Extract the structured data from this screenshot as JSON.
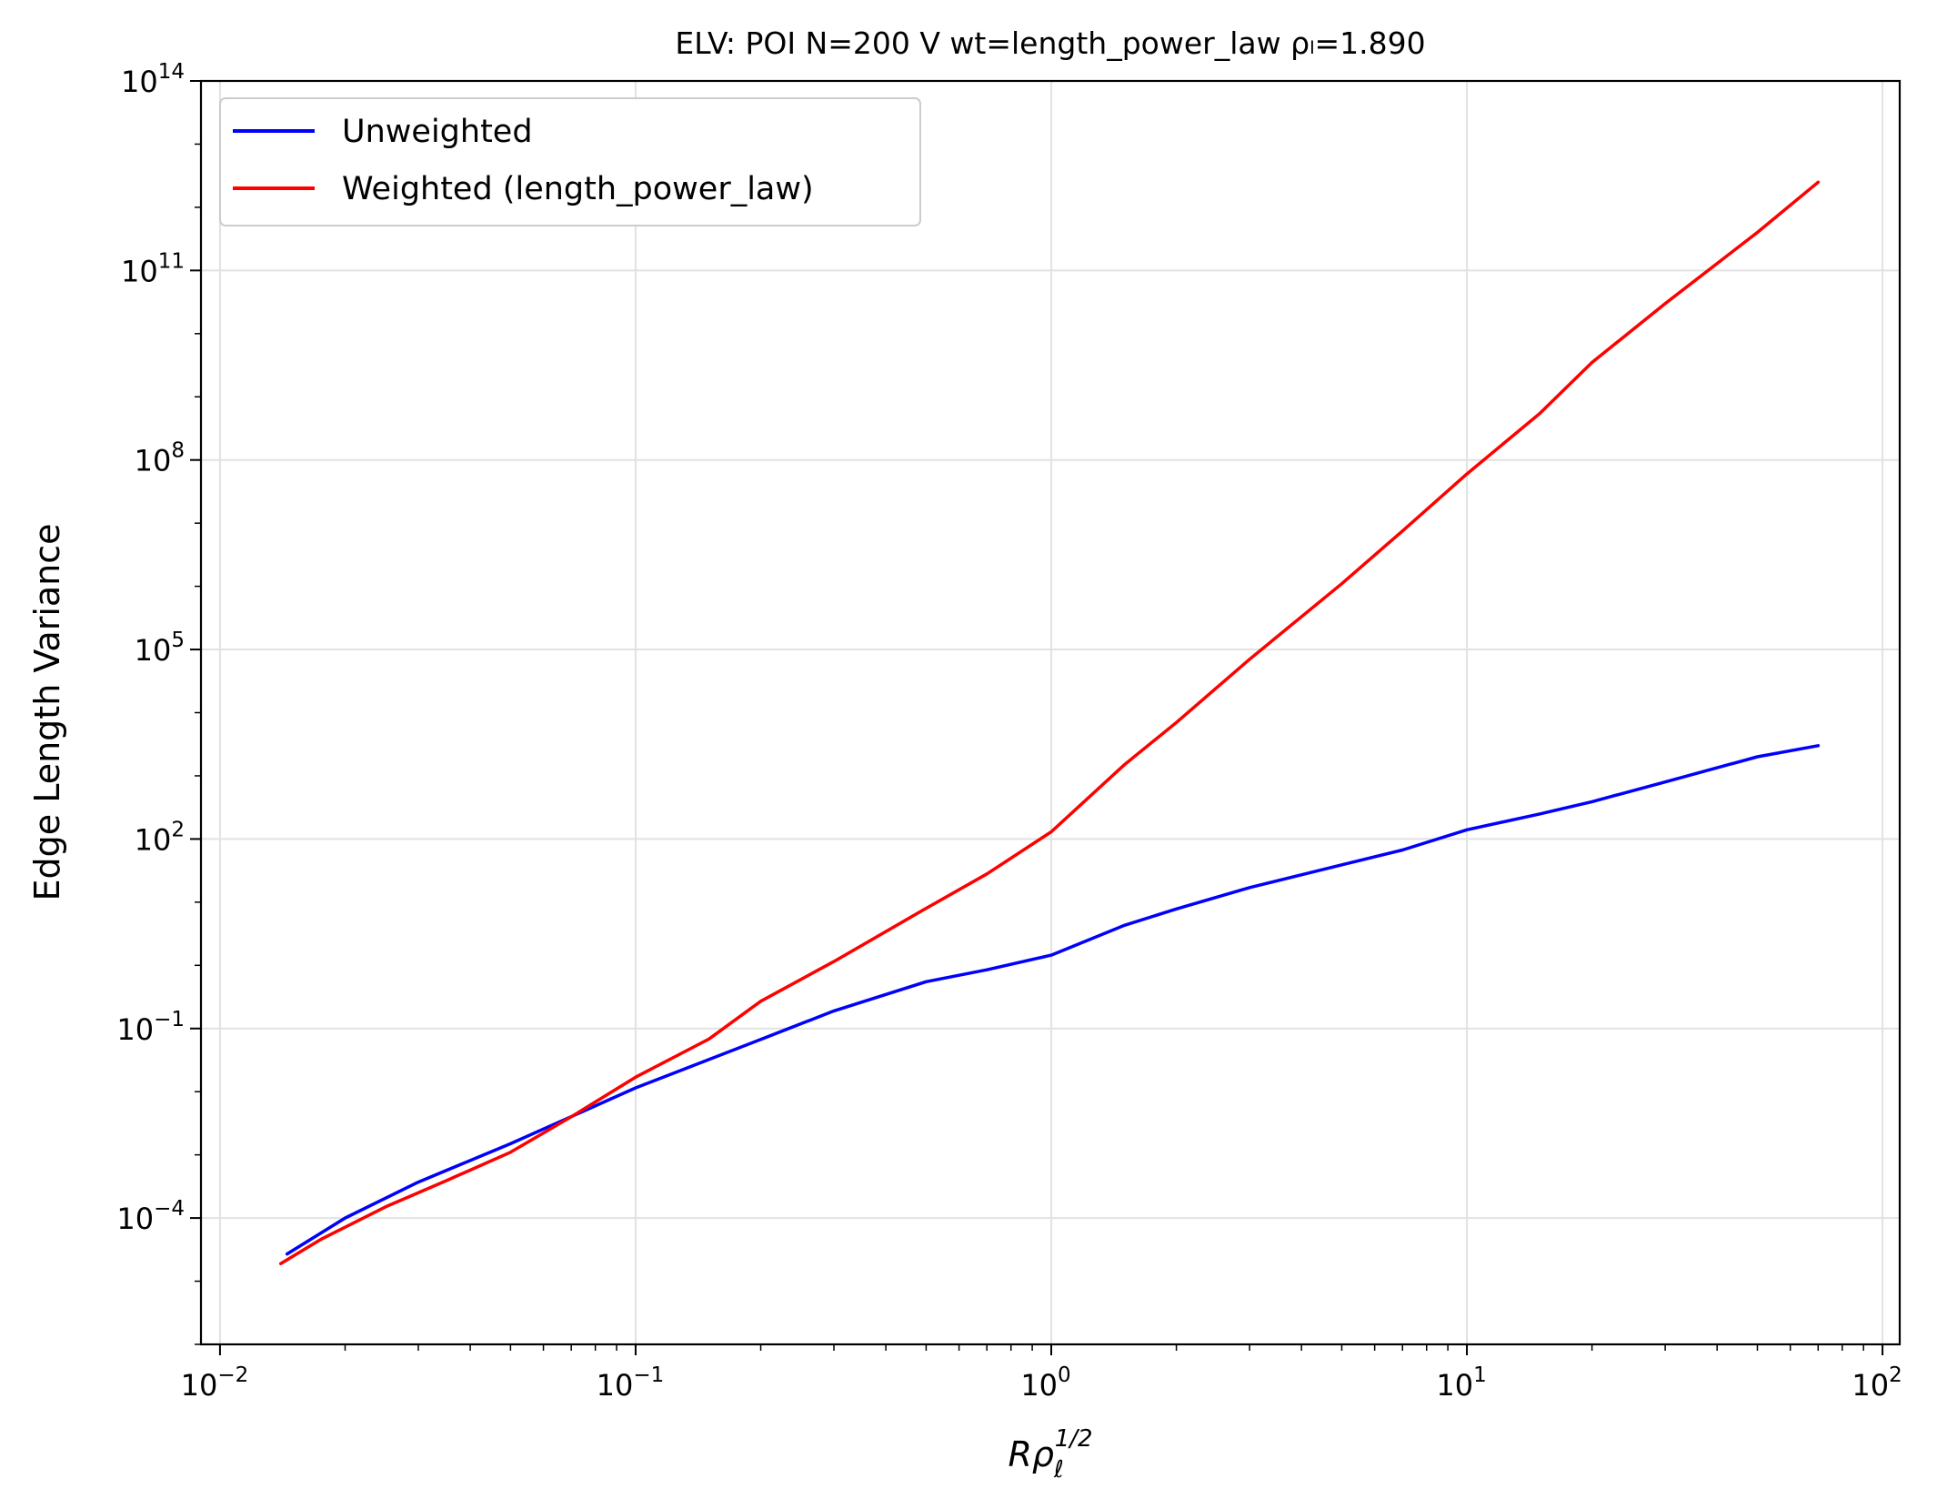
{
  "chart_data": {
    "type": "line",
    "title": "ELV: POI N=200 V wt=length_power_law ρₗ=1.890",
    "xlabel": "Rρ_ℓ^{1/2}",
    "ylabel": "Edge Length Variance",
    "x_scale": "log",
    "y_scale": "log",
    "xlim": [
      0.009,
      110
    ],
    "ylim": [
      1e-06,
      100000000000000.0
    ],
    "grid": true,
    "legend_position": "top-left",
    "x_ticks": [
      {
        "value": 0.01,
        "base": "10",
        "exp": "−2"
      },
      {
        "value": 0.1,
        "base": "10",
        "exp": "−1"
      },
      {
        "value": 1,
        "base": "10",
        "exp": "0"
      },
      {
        "value": 10,
        "base": "10",
        "exp": "1"
      },
      {
        "value": 100,
        "base": "10",
        "exp": "2"
      }
    ],
    "y_ticks": [
      {
        "value": 0.0001,
        "base": "10",
        "exp": "−4"
      },
      {
        "value": 0.1,
        "base": "10",
        "exp": "−1"
      },
      {
        "value": 100.0,
        "base": "10",
        "exp": "2"
      },
      {
        "value": 100000.0,
        "base": "10",
        "exp": "5"
      },
      {
        "value": 100000000.0,
        "base": "10",
        "exp": "8"
      },
      {
        "value": 100000000000.0,
        "base": "10",
        "exp": "11"
      },
      {
        "value": 100000000000000.0,
        "base": "10",
        "exp": "14"
      }
    ],
    "series": [
      {
        "name": "Unweighted",
        "color": "#0000ff",
        "x": [
          0.0145,
          0.02,
          0.03,
          0.05,
          0.1,
          0.2,
          0.3,
          0.5,
          0.7,
          1.0,
          1.5,
          2,
          3,
          5,
          7,
          10,
          15,
          20,
          30,
          50,
          70
        ],
        "y": [
          2.7e-05,
          0.0001,
          0.00037,
          0.0015,
          0.0115,
          0.067,
          0.19,
          0.55,
          0.85,
          1.45,
          4.3,
          7.8,
          17,
          39,
          67,
          140,
          250,
          390,
          800,
          2000,
          3000
        ]
      },
      {
        "name": "Weighted (length_power_law)",
        "color": "#ff0000",
        "x": [
          0.014,
          0.0175,
          0.025,
          0.035,
          0.05,
          0.07,
          0.1,
          0.15,
          0.2,
          0.3,
          0.5,
          0.7,
          1.0,
          1.5,
          2,
          3,
          5,
          7,
          10,
          15,
          20,
          30,
          50,
          70
        ],
        "y": [
          1.9e-05,
          4.6e-05,
          0.00015,
          0.00039,
          0.0011,
          0.004,
          0.017,
          0.068,
          0.27,
          1.15,
          8.0,
          28,
          130,
          1500,
          7000,
          70000,
          1100000.0,
          7500000.0,
          60000000.0,
          550000000.0,
          3500000000.0,
          30000000000.0,
          400000000000.0,
          2500000000000.0
        ]
      }
    ]
  }
}
